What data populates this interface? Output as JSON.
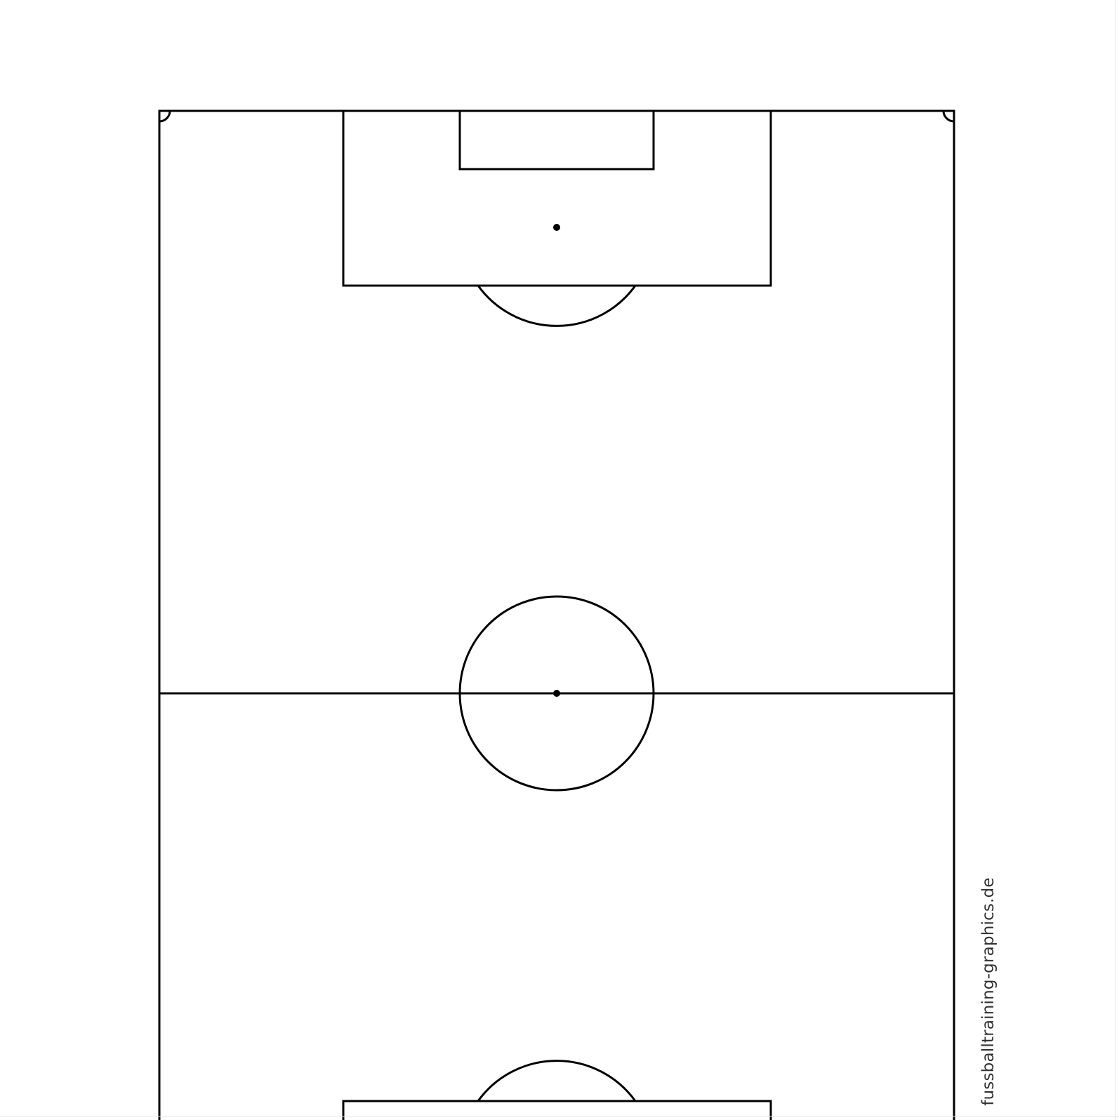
{
  "watermark": {
    "text": "fussballtraining-graphics.de"
  },
  "colors": {
    "background": "#ffffff",
    "line": "#000000",
    "watermark": "#333333"
  }
}
